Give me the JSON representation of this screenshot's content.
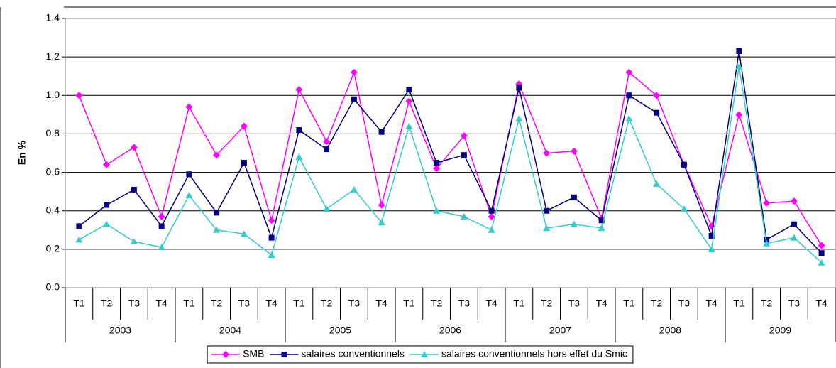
{
  "chart_data": {
    "type": "line",
    "y_label": "En %",
    "categories": [
      "T1",
      "T2",
      "T3",
      "T4",
      "T1",
      "T2",
      "T3",
      "T4",
      "T1",
      "T2",
      "T3",
      "T4",
      "T1",
      "T2",
      "T3",
      "T4",
      "T1",
      "T2",
      "T3",
      "T4",
      "T1",
      "T2",
      "T3",
      "T4",
      "T1",
      "T2",
      "T3",
      "T4"
    ],
    "groups": [
      "2003",
      "2004",
      "2005",
      "2006",
      "2007",
      "2008",
      "2009"
    ],
    "ylim": [
      0,
      1.4
    ],
    "yticks": [
      {
        "value": 0,
        "label": "0,0"
      },
      {
        "value": 0.2,
        "label": "0,2"
      },
      {
        "value": 0.4,
        "label": "0,4"
      },
      {
        "value": 0.6,
        "label": "0,6"
      },
      {
        "value": 0.8,
        "label": "0,8"
      },
      {
        "value": 1.0,
        "label": "1,0"
      },
      {
        "value": 1.2,
        "label": "1,2"
      },
      {
        "value": 1.4,
        "label": "1,4"
      }
    ],
    "grid": true,
    "legend": "bottom",
    "series": [
      {
        "name": "SMB",
        "color": "#ff00ff",
        "marker": "diamond",
        "values": [
          1.0,
          0.64,
          0.73,
          0.37,
          0.94,
          0.69,
          0.84,
          0.35,
          1.03,
          0.76,
          1.12,
          0.43,
          0.97,
          0.62,
          0.79,
          0.37,
          1.06,
          0.7,
          0.71,
          0.36,
          1.12,
          1.0,
          0.64,
          0.32,
          0.9,
          0.44,
          0.45,
          0.22
        ]
      },
      {
        "name": "salaires conventionnels",
        "color": "#000080",
        "marker": "square",
        "values": [
          0.32,
          0.43,
          0.51,
          0.32,
          0.59,
          0.39,
          0.65,
          0.26,
          0.82,
          0.72,
          0.98,
          0.81,
          1.03,
          0.65,
          0.69,
          0.4,
          1.04,
          0.4,
          0.47,
          0.35,
          1.0,
          0.91,
          0.64,
          0.27,
          1.23,
          0.25,
          0.33,
          0.18
        ]
      },
      {
        "name": "salaires conventionnels hors effet du Smic",
        "color": "#33cccc",
        "marker": "triangle",
        "values": [
          0.25,
          0.33,
          0.24,
          0.21,
          0.48,
          0.3,
          0.28,
          0.17,
          0.68,
          0.41,
          0.51,
          0.34,
          0.84,
          0.4,
          0.37,
          0.3,
          0.88,
          0.31,
          0.33,
          0.31,
          0.88,
          0.54,
          0.41,
          0.2,
          1.15,
          0.23,
          0.26,
          0.13
        ]
      }
    ]
  }
}
